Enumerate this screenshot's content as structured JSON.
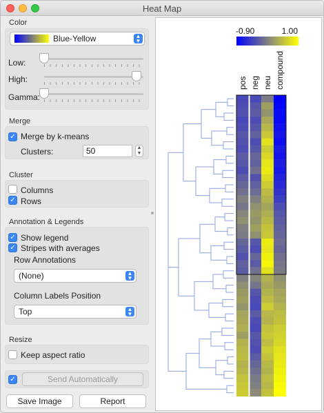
{
  "window": {
    "title": "Heat Map"
  },
  "color": {
    "section": "Color",
    "palette": "Blue-Yellow",
    "palette_colors": [
      "#0000ff",
      "#ffff00"
    ],
    "low_label": "Low:",
    "high_label": "High:",
    "gamma_label": "Gamma:",
    "low_value": 0.0,
    "high_value": 1.0,
    "gamma_value": 0.0
  },
  "merge": {
    "section": "Merge",
    "kmeans_label": "Merge by k-means",
    "kmeans_checked": true,
    "clusters_label": "Clusters:",
    "clusters_value": "50"
  },
  "cluster": {
    "section": "Cluster",
    "columns_label": "Columns",
    "columns_checked": false,
    "rows_label": "Rows",
    "rows_checked": true
  },
  "annotation": {
    "section": "Annotation & Legends",
    "show_legend_label": "Show legend",
    "show_legend_checked": true,
    "stripes_label": "Stripes with averages",
    "stripes_checked": true,
    "row_annotations_label": "Row Annotations",
    "row_annotations_value": "(None)",
    "col_labels_pos_label": "Column Labels Position",
    "col_labels_pos_value": "Top"
  },
  "resize": {
    "section": "Resize",
    "keep_aspect_label": "Keep aspect ratio",
    "keep_aspect_checked": false
  },
  "footer": {
    "send_auto_label": "Send Automatically",
    "send_auto_checked": true,
    "save_image_label": "Save Image",
    "report_label": "Report"
  },
  "heatmap": {
    "legend_min": "-0.90",
    "legend_max": "1.00",
    "columns": [
      "pos",
      "neg",
      "neu",
      "compound"
    ],
    "dendrogram_color": "#8ea0e6",
    "rows": [
      [
        0.28,
        0.28,
        0.48,
        0.0
      ],
      [
        0.3,
        0.34,
        0.62,
        0.02
      ],
      [
        0.32,
        0.36,
        0.58,
        0.04
      ],
      [
        0.28,
        0.3,
        0.66,
        0.03
      ],
      [
        0.3,
        0.34,
        0.72,
        0.06
      ],
      [
        0.34,
        0.38,
        0.78,
        0.08
      ],
      [
        0.32,
        0.3,
        0.88,
        0.05
      ],
      [
        0.3,
        0.34,
        0.8,
        0.1
      ],
      [
        0.36,
        0.4,
        0.85,
        0.08
      ],
      [
        0.34,
        0.38,
        0.9,
        0.12
      ],
      [
        0.3,
        0.44,
        0.92,
        0.1
      ],
      [
        0.36,
        0.32,
        0.86,
        0.14
      ],
      [
        0.4,
        0.38,
        0.8,
        0.16
      ],
      [
        0.44,
        0.42,
        0.74,
        0.2
      ],
      [
        0.5,
        0.5,
        0.7,
        0.24
      ],
      [
        0.46,
        0.56,
        0.64,
        0.3
      ],
      [
        0.52,
        0.6,
        0.68,
        0.34
      ],
      [
        0.56,
        0.58,
        0.72,
        0.36
      ],
      [
        0.5,
        0.62,
        0.76,
        0.38
      ],
      [
        0.48,
        0.56,
        0.78,
        0.4
      ],
      [
        0.4,
        0.34,
        0.92,
        0.42
      ],
      [
        0.36,
        0.3,
        0.9,
        0.4
      ],
      [
        0.32,
        0.4,
        0.94,
        0.44
      ],
      [
        0.38,
        0.36,
        0.96,
        0.46
      ],
      [
        0.36,
        0.44,
        0.88,
        0.48
      ],
      [
        0.5,
        0.52,
        0.7,
        0.56
      ],
      [
        0.56,
        0.46,
        0.66,
        0.6
      ],
      [
        0.6,
        0.34,
        0.7,
        0.64
      ],
      [
        0.62,
        0.3,
        0.74,
        0.66
      ],
      [
        0.58,
        0.28,
        0.8,
        0.7
      ],
      [
        0.64,
        0.36,
        0.72,
        0.74
      ],
      [
        0.66,
        0.3,
        0.7,
        0.76
      ],
      [
        0.68,
        0.28,
        0.76,
        0.8
      ],
      [
        0.62,
        0.34,
        0.78,
        0.82
      ],
      [
        0.7,
        0.32,
        0.74,
        0.84
      ],
      [
        0.72,
        0.3,
        0.8,
        0.88
      ],
      [
        0.74,
        0.36,
        0.76,
        0.9
      ],
      [
        0.7,
        0.4,
        0.72,
        0.92
      ],
      [
        0.72,
        0.44,
        0.7,
        0.94
      ],
      [
        0.76,
        0.48,
        0.74,
        0.96
      ],
      [
        0.78,
        0.5,
        0.72,
        0.98
      ],
      [
        0.8,
        0.54,
        0.76,
        1.0
      ]
    ],
    "selection_rows": [
      0,
      24
    ]
  }
}
